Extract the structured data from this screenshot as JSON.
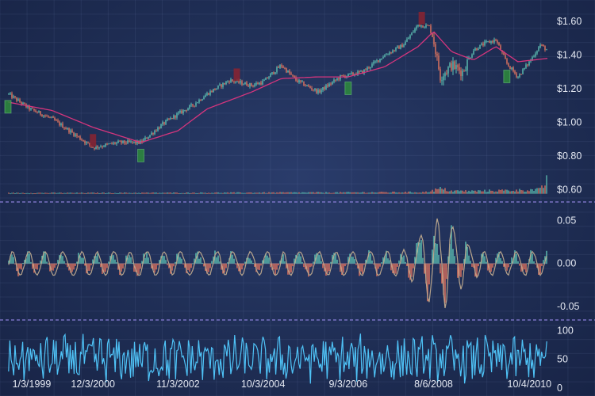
{
  "chart_data": [
    {
      "panel": "price",
      "type": "candlestick",
      "title": "",
      "x_range": [
        "1/3/1999",
        "3/1/2011"
      ],
      "ylim": [
        0.55,
        1.68
      ],
      "y_ticks": [
        "$1.60",
        "$1.40",
        "$1.20",
        "$1.00",
        "$0.80",
        "$0.60"
      ],
      "y_tick_values": [
        1.6,
        1.4,
        1.2,
        1.0,
        0.8,
        0.6
      ],
      "grid": true,
      "series": [
        {
          "type": "line",
          "role": "price",
          "x": [
            "1/3/1999",
            "7/1/1999",
            "1/3/2000",
            "7/1/2000",
            "12/3/2000",
            "7/1/2001",
            "1/1/2002",
            "7/1/2002",
            "11/3/2002",
            "3/1/2003",
            "7/1/2003",
            "1/1/2004",
            "7/1/2004",
            "10/3/2004",
            "3/1/2005",
            "7/1/2005",
            "1/1/2006",
            "7/1/2006",
            "9/3/2006",
            "1/1/2007",
            "7/1/2007",
            "12/1/2007",
            "4/1/2008",
            "7/1/2008",
            "8/6/2008",
            "10/1/2008",
            "1/1/2009",
            "4/1/2009",
            "7/1/2009",
            "10/4/2009",
            "1/1/2010",
            "4/1/2010",
            "7/1/2010",
            "10/4/2010",
            "1/1/2011",
            "3/1/2011"
          ],
          "values": [
            1.17,
            1.08,
            1.02,
            0.93,
            0.85,
            0.88,
            0.88,
            0.99,
            1.05,
            1.1,
            1.17,
            1.25,
            1.22,
            1.24,
            1.34,
            1.25,
            1.18,
            1.27,
            1.28,
            1.3,
            1.4,
            1.46,
            1.58,
            1.57,
            1.49,
            1.27,
            1.34,
            1.3,
            1.43,
            1.47,
            1.49,
            1.35,
            1.27,
            1.36,
            1.46,
            1.43
          ]
        },
        {
          "type": "line",
          "role": "moving-average",
          "color": "#d6357d",
          "x": [
            "1/3/1999",
            "1/3/2000",
            "12/3/2000",
            "1/1/2002",
            "11/3/2002",
            "7/1/2003",
            "7/1/2004",
            "3/1/2005",
            "1/1/2006",
            "9/3/2006",
            "7/1/2007",
            "4/1/2008",
            "8/6/2008",
            "1/1/2009",
            "7/1/2009",
            "1/1/2010",
            "7/1/2010",
            "3/1/2011"
          ],
          "values": [
            1.12,
            1.07,
            0.97,
            0.88,
            0.95,
            1.08,
            1.18,
            1.26,
            1.27,
            1.27,
            1.33,
            1.45,
            1.54,
            1.42,
            1.37,
            1.45,
            1.36,
            1.38
          ]
        }
      ],
      "markers": [
        {
          "type": "buy",
          "color": "#2e8b3c",
          "x": "1/3/1999"
        },
        {
          "type": "sell",
          "color": "#8b2330",
          "x": "12/3/2000"
        },
        {
          "type": "buy",
          "color": "#2e8b3c",
          "x": "1/1/2002"
        },
        {
          "type": "sell",
          "color": "#8b2330",
          "x": "3/1/2004"
        },
        {
          "type": "buy",
          "color": "#2e8b3c",
          "x": "9/3/2006"
        },
        {
          "type": "sell",
          "color": "#8b2330",
          "x": "5/1/2008"
        },
        {
          "type": "buy",
          "color": "#2e8b3c",
          "x": "4/1/2010"
        }
      ],
      "volume": {
        "type": "bar",
        "colors": {
          "up": "#5ec2b4",
          "down": "#e8775f"
        },
        "x": [
          "1/3/1999",
          "11/3/2002",
          "9/3/2006",
          "6/1/2008",
          "10/1/2008",
          "1/1/2009",
          "7/1/2009",
          "1/1/2010",
          "7/1/2010",
          "1/1/2011",
          "3/1/2011"
        ],
        "values": [
          0.005,
          0.006,
          0.008,
          0.01,
          0.03,
          0.017,
          0.016,
          0.019,
          0.021,
          0.025,
          0.07
        ]
      }
    },
    {
      "panel": "oscillator",
      "type": "bar+line",
      "ylim": [
        -0.06,
        0.065
      ],
      "y_ticks": [
        "0.05",
        "0.00",
        "-0.05"
      ],
      "y_tick_values": [
        0.05,
        0.0,
        -0.05
      ],
      "colors": {
        "positive": "#5ec2b4",
        "negative": "#e8775f",
        "line": "#b7a48c"
      },
      "note_range": {
        "min": -0.045,
        "max": 0.06,
        "largest_swings_at": "10/1/2008"
      }
    },
    {
      "panel": "rsi",
      "type": "line",
      "color": "#4fc3f7",
      "ylim": [
        0,
        110
      ],
      "y_ticks": [
        "100",
        "50",
        "0"
      ],
      "y_tick_values": [
        100,
        50,
        0
      ],
      "x_ticks": [
        "1/3/1999",
        "12/3/2000",
        "11/3/2002",
        "10/3/2004",
        "9/3/2006",
        "8/6/2008",
        "10/4/2010"
      ],
      "note_range": {
        "min": 5,
        "max": 100
      }
    }
  ]
}
